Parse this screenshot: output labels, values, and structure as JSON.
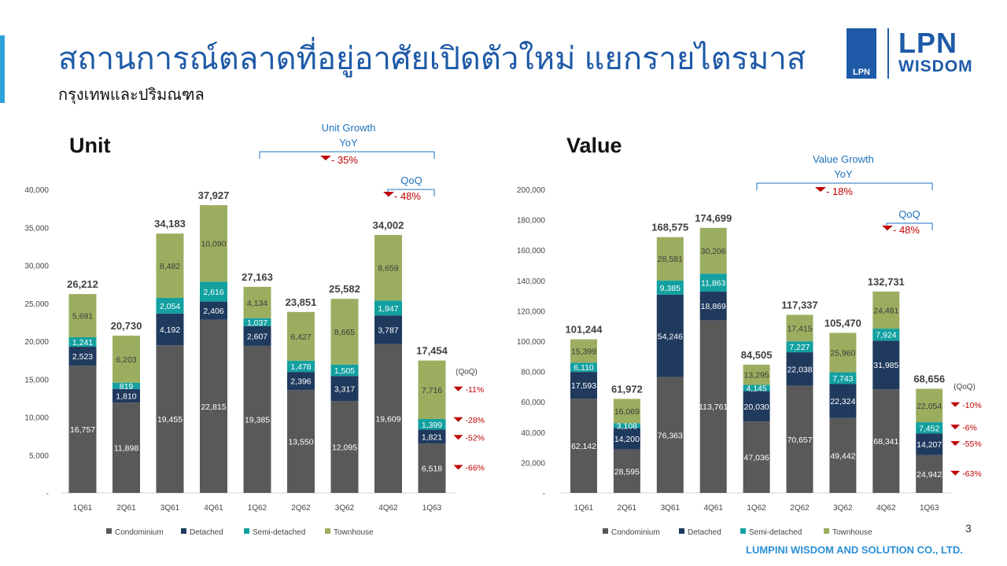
{
  "header": {
    "title": "สถานการณ์ตลาดที่อยู่อาศัยเปิดตัวใหม่ แยกรายไตรมาส",
    "subtitle": "กรุงเทพและปริมณฑล",
    "logo_mark": "LPN",
    "logo_name": "LPN",
    "logo_sub": "WISDOM"
  },
  "footer": {
    "page": "3",
    "company": "LUMPINI WISDOM AND SOLUTION CO., LTD."
  },
  "colors": {
    "Condominium": "#595959",
    "Detached": "#203a5e",
    "Semi-detached": "#12a0a0",
    "Townhouse": "#9bae60",
    "accent": "#1e5aa8",
    "negative": "#c00000"
  },
  "chart_data": [
    {
      "type": "bar",
      "stacked": true,
      "title": "Unit",
      "ylim": [
        0,
        40000
      ],
      "yticks": [
        "-",
        "5,000",
        "10,000",
        "15,000",
        "20,000",
        "25,000",
        "30,000",
        "35,000",
        "40,000"
      ],
      "categories": [
        "1Q61",
        "2Q61",
        "3Q61",
        "4Q61",
        "1Q62",
        "2Q62",
        "3Q62",
        "4Q62",
        "1Q63"
      ],
      "series": [
        {
          "name": "Condominium",
          "values": [
            16757,
            11898,
            19455,
            22815,
            19385,
            13550,
            12095,
            19609,
            6518
          ]
        },
        {
          "name": "Detached",
          "values": [
            2523,
            1810,
            4192,
            2406,
            2607,
            2396,
            3317,
            3787,
            1821
          ]
        },
        {
          "name": "Semi-detached",
          "values": [
            1241,
            819,
            2054,
            2616,
            1037,
            1478,
            1505,
            1947,
            1399
          ]
        },
        {
          "name": "Townhouse",
          "values": [
            5691,
            6203,
            8482,
            10090,
            4134,
            6427,
            8665,
            8659,
            7716
          ]
        }
      ],
      "totals": [
        26212,
        20730,
        34183,
        37927,
        27163,
        23851,
        25582,
        34002,
        17454
      ],
      "growth": {
        "label": "Unit Growth",
        "yoy_label": "YoY",
        "yoy": "- 35%",
        "qoq_label": "QoQ",
        "qoq": "- 48%"
      },
      "qoq_header": "(QoQ)",
      "qoq_by_series": {
        "Condominium": "-66%",
        "Detached": "-52%",
        "Semi-detached": "-28%",
        "Townhouse": "-11%"
      },
      "legend": "bottom"
    },
    {
      "type": "bar",
      "stacked": true,
      "title": "Value",
      "ylim": [
        0,
        200000
      ],
      "yticks": [
        "-",
        "20,000",
        "40,000",
        "60,000",
        "80,000",
        "100,000",
        "120,000",
        "140,000",
        "160,000",
        "180,000",
        "200,000"
      ],
      "categories": [
        "1Q61",
        "2Q61",
        "3Q61",
        "4Q61",
        "1Q62",
        "2Q62",
        "3Q62",
        "4Q62",
        "1Q63"
      ],
      "series": [
        {
          "name": "Condominium",
          "values": [
            62142,
            28595,
            76363,
            113761,
            47036,
            70657,
            49442,
            68341,
            24942
          ]
        },
        {
          "name": "Detached",
          "values": [
            17593,
            14200,
            54246,
            18869,
            20030,
            22038,
            22324,
            31985,
            14207
          ]
        },
        {
          "name": "Semi-detached",
          "values": [
            6110,
            3108,
            9385,
            11863,
            4145,
            7227,
            7743,
            7924,
            7452
          ]
        },
        {
          "name": "Townhouse",
          "values": [
            15399,
            16069,
            28581,
            30206,
            13295,
            17415,
            25960,
            24481,
            22054
          ]
        }
      ],
      "totals": [
        101244,
        61972,
        168575,
        174699,
        84505,
        117337,
        105470,
        132731,
        68656
      ],
      "growth": {
        "label": "Value Growth",
        "yoy_label": "YoY",
        "yoy": "- 18%",
        "qoq_label": "QoQ",
        "qoq": "- 48%"
      },
      "qoq_header": "(QoQ)",
      "qoq_by_series": {
        "Condominium": "-63%",
        "Detached": "-55%",
        "Semi-detached": "-6%",
        "Townhouse": "-10%"
      },
      "legend": "bottom"
    }
  ]
}
